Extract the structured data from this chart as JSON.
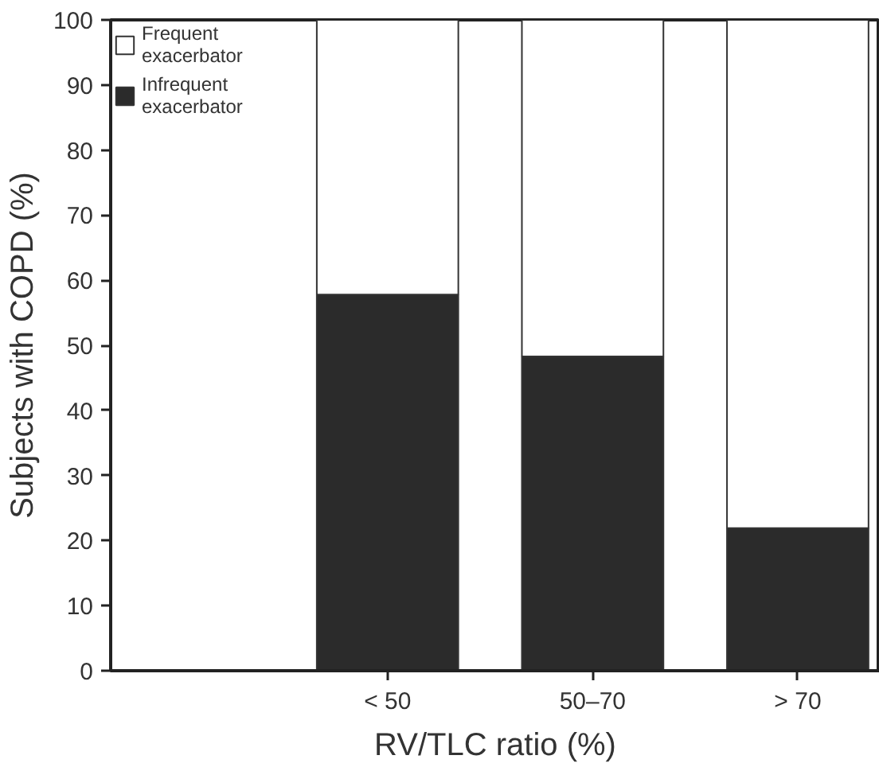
{
  "chart_data": {
    "type": "bar",
    "stacked": true,
    "xlabel": "RV/TLC ratio (%)",
    "ylabel": "Subjects with COPD (%)",
    "categories": [
      "< 50",
      "50–70",
      "> 70"
    ],
    "series": [
      {
        "name": "Infrequent exacerbator",
        "color": "#2b2b2b",
        "values": [
          57.8,
          48.3,
          21.9
        ]
      },
      {
        "name": "Frequent exacerbator",
        "color": "#ffffff",
        "values": [
          42.2,
          51.7,
          78.1
        ]
      }
    ],
    "ylim": [
      0,
      100
    ],
    "yticks": [
      0,
      10,
      20,
      30,
      40,
      50,
      60,
      70,
      80,
      90,
      100
    ],
    "grid": false,
    "legend": "top left"
  }
}
